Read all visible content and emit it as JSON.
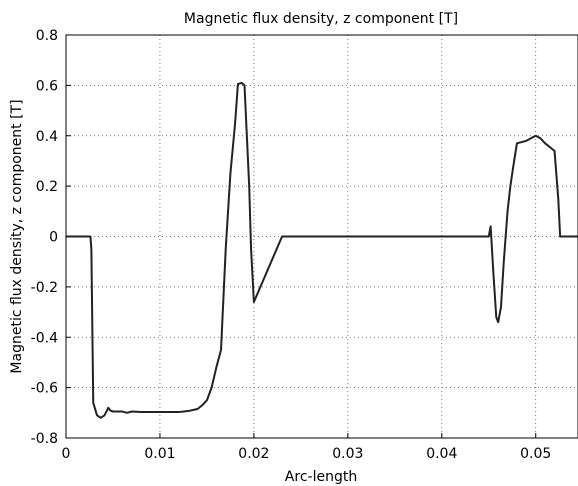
{
  "chart_data": {
    "type": "line",
    "title": "Magnetic flux density, z component [T]",
    "xlabel": "Arc-length",
    "ylabel": "Magnetic flux density, z component [T]",
    "xlim": [
      0,
      0.0545
    ],
    "ylim": [
      -0.8,
      0.8
    ],
    "xticks": [
      0,
      0.01,
      0.02,
      0.03,
      0.04,
      0.05
    ],
    "xtick_labels": [
      "0",
      "0.01",
      "0.02",
      "0.03",
      "0.04",
      "0.05"
    ],
    "yticks": [
      -0.8,
      -0.6,
      -0.4,
      -0.2,
      0,
      0.2,
      0.4,
      0.6,
      0.8
    ],
    "ytick_labels": [
      "-0.8",
      "-0.6",
      "-0.4",
      "-0.2",
      "0",
      "0.2",
      "0.4",
      "0.6",
      "0.8"
    ],
    "grid": true,
    "line_color": "#222222",
    "series": [
      {
        "x": [
          0,
          0.0026,
          0.0027,
          0.0029,
          0.0033,
          0.0037,
          0.0041,
          0.0045,
          0.0047,
          0.005,
          0.006,
          0.0065,
          0.007,
          0.008,
          0.01,
          0.012,
          0.013,
          0.014,
          0.0145,
          0.015,
          0.0155,
          0.016,
          0.0165,
          0.017,
          0.0175,
          0.018,
          0.0183,
          0.0187,
          0.019,
          0.0195,
          0.0197,
          0.02,
          0.023,
          0.03,
          0.04,
          0.045,
          0.0452,
          0.0455,
          0.0458,
          0.046,
          0.0463,
          0.0466,
          0.047,
          0.0473,
          0.0477,
          0.048,
          0.049,
          0.05,
          0.0505,
          0.051,
          0.052,
          0.0524,
          0.0526,
          0.0545
        ],
        "y": [
          0,
          0,
          -0.05,
          -0.66,
          -0.71,
          -0.72,
          -0.71,
          -0.68,
          -0.69,
          -0.695,
          -0.695,
          -0.7,
          -0.695,
          -0.697,
          -0.697,
          -0.697,
          -0.693,
          -0.685,
          -0.67,
          -0.65,
          -0.6,
          -0.52,
          -0.45,
          -0.05,
          0.25,
          0.45,
          0.605,
          0.61,
          0.6,
          0.2,
          -0.05,
          -0.26,
          0.0,
          0.0,
          0.0,
          0.0,
          0.04,
          -0.15,
          -0.32,
          -0.34,
          -0.28,
          -0.1,
          0.1,
          0.2,
          0.3,
          0.37,
          0.38,
          0.4,
          0.39,
          0.37,
          0.34,
          0.15,
          0.0,
          0.0
        ]
      }
    ]
  }
}
